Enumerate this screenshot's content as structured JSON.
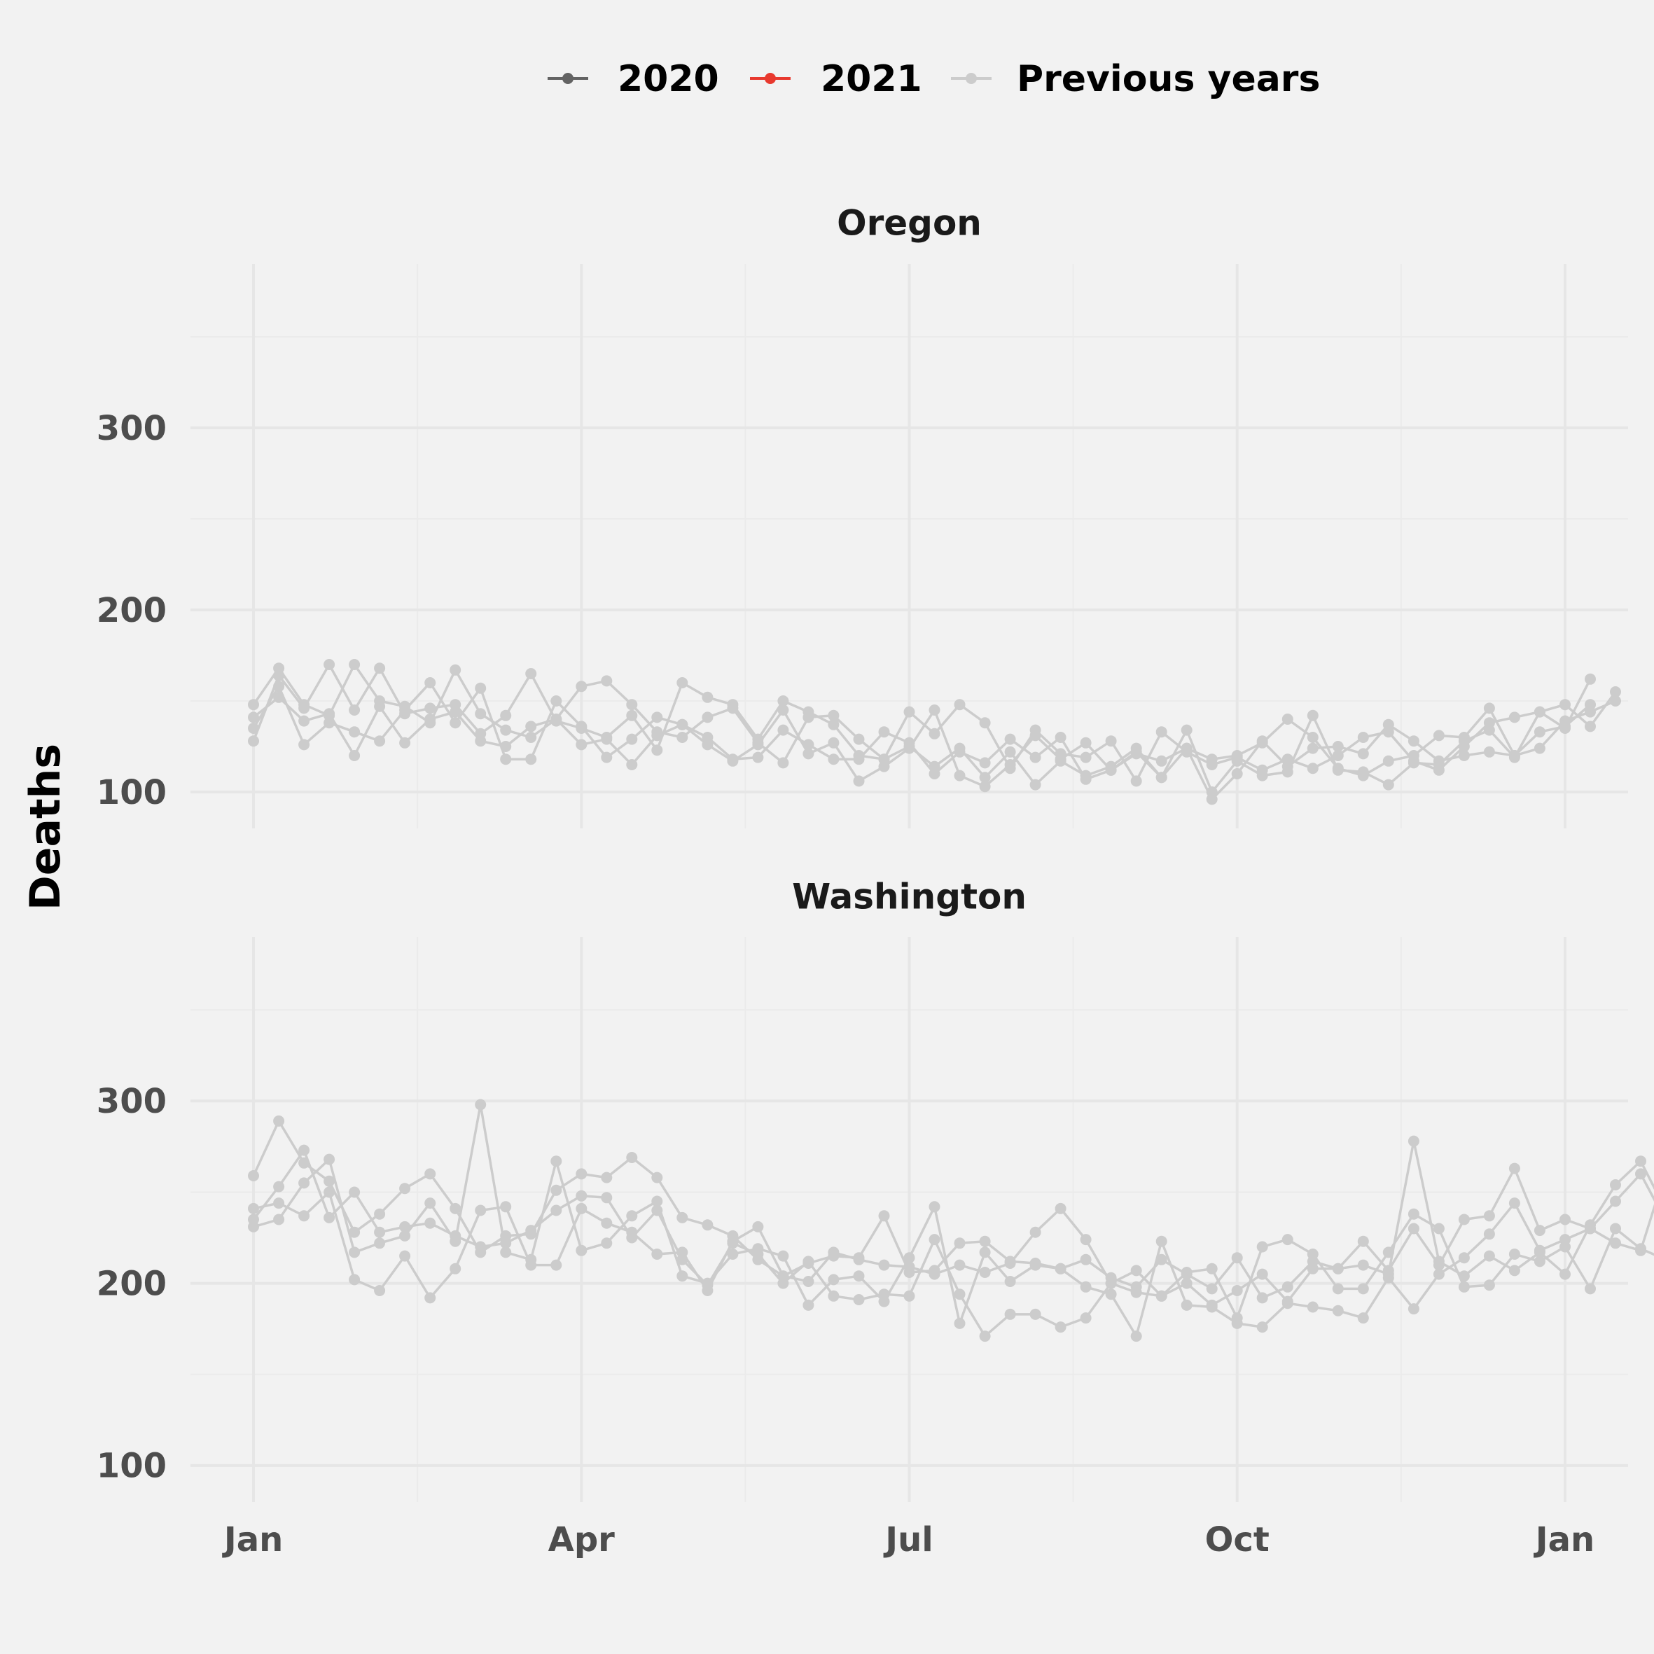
{
  "chart_data": {
    "type": "line",
    "ylabel": "Deaths",
    "x_ticks": [
      {
        "label": "Jan",
        "week": 1
      },
      {
        "label": "Apr",
        "week": 14
      },
      {
        "label": "Jul",
        "week": 27
      },
      {
        "label": "Oct",
        "week": 40
      },
      {
        "label": "Jan",
        "week": 53
      }
    ],
    "y_ticks": [
      100,
      200,
      300
    ],
    "ylim": [
      80,
      390
    ],
    "xlim": [
      -1.5,
      55.5
    ],
    "grid": true,
    "legend": {
      "position": "top",
      "entries": [
        {
          "name": "2020",
          "color": "#636363"
        },
        {
          "name": "2021",
          "color": "#e8392e"
        },
        {
          "name": "Previous years",
          "color": "#cccccc"
        }
      ]
    },
    "panels": [
      {
        "title": "Oregon",
        "series": [
          {
            "name": "Previous years",
            "values": [
              128,
              164,
              146,
              170,
              145,
              168,
              143,
              146,
              148,
              132,
              142,
              165,
              139,
              135,
              130,
              142,
              123,
              160,
              152,
              148,
              129,
              150,
              144,
              137,
              120,
              118,
              144,
              132,
              148,
              138,
              113,
              134,
              121,
              119,
              128,
              106,
              133,
              122,
              115,
              119,
              112,
              118,
              113,
              120,
              130,
              133,
              117,
              112,
              125,
              138,
              141,
              144,
              135,
              162
            ]
          },
          {
            "name": "Previous years",
            "values": [
              148,
              168,
              148,
              142,
              170,
              150,
              147,
              138,
              167,
              143,
              134,
              130,
              140,
              158,
              161,
              148,
              133,
              130,
              141,
              146,
              127,
              116,
              141,
              142,
              129,
              118,
              125,
              114,
              124,
              108,
              122,
              104,
              117,
              109,
              114,
              124,
              108,
              134,
              100,
              117,
              109,
              111,
              142,
              112,
              111,
              104,
              116,
              115,
              128,
              134,
              119,
              144,
              148,
              136,
              155
            ]
          },
          {
            "name": "Previous years",
            "values": [
              135,
              158,
              126,
              138,
              133,
              128,
              145,
              160,
              138,
              157,
              118,
              118,
              150,
              136,
              119,
              129,
              141,
              137,
              126,
              117,
              126,
              145,
              121,
              127,
              106,
              114,
              124,
              145,
              109,
              103,
              115,
              131,
              118,
              127,
              112,
              122,
              108,
              124,
              118,
              120,
              127,
              140,
              130,
              113,
              109,
              117,
              120,
              131,
              130,
              146,
              120,
              133,
              136,
              148
            ]
          },
          {
            "name": "Previous years",
            "values": [
              141,
              152,
              139,
              143,
              120,
              147,
              127,
              140,
              144,
              128,
              125,
              136,
              140,
              126,
              129,
              115,
              131,
              137,
              130,
              118,
              119,
              134,
              126,
              118,
              118,
              133,
              127,
              110,
              122,
              116,
              129,
              119,
              130,
              107,
              112,
              121,
              117,
              124,
              96,
              110,
              128,
              114,
              124,
              125,
              121,
              137,
              128,
              117,
              120,
              122,
              120,
              124,
              139,
              144,
              150
            ]
          }
        ]
      },
      {
        "title": "Washington",
        "series": [
          {
            "name": "Previous years",
            "values": [
              231,
              235,
              255,
              268,
              217,
              222,
              226,
              244,
              223,
              298,
              217,
              213,
              267,
              218,
              222,
              237,
              245,
              204,
              200,
              216,
              219,
              215,
              188,
              202,
              204,
              190,
              214,
              242,
              178,
              217,
              201,
              210,
              208,
              213,
              203,
              198,
              213,
              205,
              197,
              214,
              192,
              198,
              212,
              208,
              210,
              205,
              278,
              212,
              204,
              215,
              207,
              217,
              205,
              232,
              254,
              267,
              240
            ]
          },
          {
            "name": "Previous years",
            "values": [
              241,
              244,
              237,
              250,
              202,
              196,
              215,
              192,
              208,
              240,
              242,
              210,
              210,
              241,
              233,
              228,
              216,
              217,
              196,
              223,
              231,
              204,
              211,
              215,
              214,
              237,
              206,
              207,
              222,
              223,
              212,
              211,
              208,
              198,
              194,
              171,
              223,
              188,
              187,
              178,
              176,
              189,
              187,
              185,
              181,
              203,
              186,
              205,
              214,
              227,
              244,
              218,
              224,
              230,
              245,
              260,
              234
            ]
          },
          {
            "name": "Previous years",
            "values": [
              235,
              253,
              273,
              236,
              250,
              228,
              231,
              233,
              226,
              220,
              222,
              229,
              240,
              248,
              247,
              225,
              240,
              213,
              199,
              222,
              216,
              200,
              212,
              193,
              191,
              194,
              193,
              224,
              194,
              171,
              183,
              183,
              176,
              181,
              200,
              195,
              193,
              206,
              208,
              181,
              220,
              224,
              216,
              197,
              197,
              217,
              238,
              230,
              198,
              199,
              216,
              212,
              220,
              197,
              230,
              219,
              213
            ]
          },
          {
            "name": "Previous years",
            "values": [
              259,
              289,
              266,
              256,
              228,
              238,
              252,
              260,
              241,
              217,
              226,
              227,
              251,
              260,
              258,
              269,
              258,
              236,
              232,
              226,
              213,
              204,
              201,
              217,
              213,
              210,
              209,
              205,
              210,
              206,
              211,
              228,
              241,
              224,
              200,
              207,
              193,
              200,
              188,
              196,
              205,
              190,
              208,
              208,
              223,
              207,
              230,
              210,
              235,
              237,
              263,
              229,
              235,
              230,
              222,
              218,
              262
            ]
          }
        ]
      }
    ]
  }
}
